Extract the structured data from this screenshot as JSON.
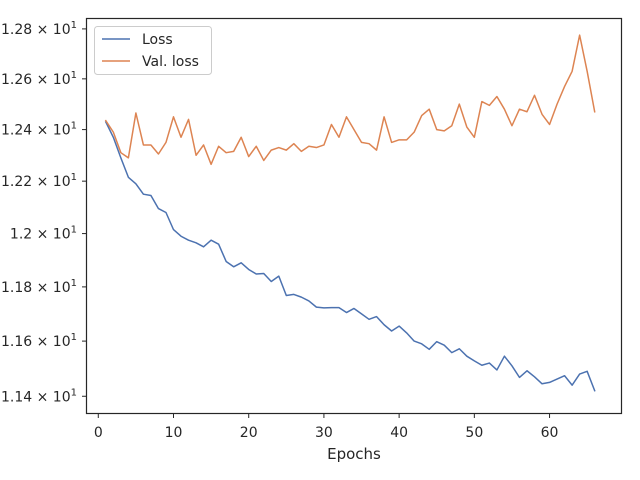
{
  "chart_data": {
    "type": "line",
    "title": "",
    "xlabel": "Epochs",
    "ylabel": "",
    "y_scale": "log",
    "grid": false,
    "legend_position": "top-left",
    "xlim": [
      -1.5,
      69.5
    ],
    "ylim": [
      11.34,
      12.84
    ],
    "x_ticks": [
      0,
      10,
      20,
      30,
      40,
      50,
      60
    ],
    "y_ticks": [
      11.4,
      11.6,
      11.8,
      12.0,
      12.2,
      12.4,
      12.6,
      12.8
    ],
    "y_tick_labels": [
      {
        "mantissa": "1.14",
        "exponent": "1"
      },
      {
        "mantissa": "1.16",
        "exponent": "1"
      },
      {
        "mantissa": "1.18",
        "exponent": "1"
      },
      {
        "mantissa": "1.2",
        "exponent": "1"
      },
      {
        "mantissa": "1.22",
        "exponent": "1"
      },
      {
        "mantissa": "1.24",
        "exponent": "1"
      },
      {
        "mantissa": "1.26",
        "exponent": "1"
      },
      {
        "mantissa": "1.28",
        "exponent": "1"
      }
    ],
    "x": [
      1,
      2,
      3,
      4,
      5,
      6,
      7,
      8,
      9,
      10,
      11,
      12,
      13,
      14,
      15,
      16,
      17,
      18,
      19,
      20,
      21,
      22,
      23,
      24,
      25,
      26,
      27,
      28,
      29,
      30,
      31,
      32,
      33,
      34,
      35,
      36,
      37,
      38,
      39,
      40,
      41,
      42,
      43,
      44,
      45,
      46,
      47,
      48,
      49,
      50,
      51,
      52,
      53,
      54,
      55,
      56,
      57,
      58,
      59,
      60,
      61,
      62,
      63,
      64,
      65,
      66
    ],
    "series": [
      {
        "name": "Loss",
        "color": "#4c72b0",
        "values": [
          12.43,
          12.37,
          12.29,
          12.215,
          12.19,
          12.15,
          12.145,
          12.095,
          12.08,
          12.015,
          11.99,
          11.975,
          11.965,
          11.95,
          11.975,
          11.96,
          11.895,
          11.875,
          11.89,
          11.865,
          11.848,
          11.85,
          11.82,
          11.84,
          11.768,
          11.772,
          11.762,
          11.748,
          11.725,
          11.722,
          11.723,
          11.723,
          11.705,
          11.72,
          11.7,
          11.68,
          11.69,
          11.66,
          11.637,
          11.655,
          11.63,
          11.6,
          11.59,
          11.57,
          11.598,
          11.585,
          11.558,
          11.572,
          11.545,
          11.528,
          11.512,
          11.52,
          11.495,
          11.545,
          11.51,
          11.468,
          11.492,
          11.47,
          11.445,
          11.45,
          11.462,
          11.474,
          11.44,
          11.48,
          11.49,
          11.42
        ]
      },
      {
        "name": "Val. loss",
        "color": "#dd8452",
        "values": [
          12.435,
          12.39,
          12.31,
          12.29,
          12.465,
          12.34,
          12.34,
          12.305,
          12.35,
          12.45,
          12.37,
          12.44,
          12.3,
          12.34,
          12.265,
          12.335,
          12.31,
          12.315,
          12.37,
          12.295,
          12.335,
          12.28,
          12.32,
          12.33,
          12.32,
          12.345,
          12.315,
          12.335,
          12.33,
          12.34,
          12.42,
          12.37,
          12.45,
          12.4,
          12.35,
          12.345,
          12.32,
          12.45,
          12.35,
          12.36,
          12.36,
          12.39,
          12.455,
          12.48,
          12.4,
          12.395,
          12.415,
          12.5,
          12.41,
          12.37,
          12.51,
          12.495,
          12.53,
          12.48,
          12.415,
          12.48,
          12.47,
          12.535,
          12.46,
          12.42,
          12.5,
          12.57,
          12.63,
          12.775,
          12.63,
          12.47
        ]
      }
    ]
  }
}
